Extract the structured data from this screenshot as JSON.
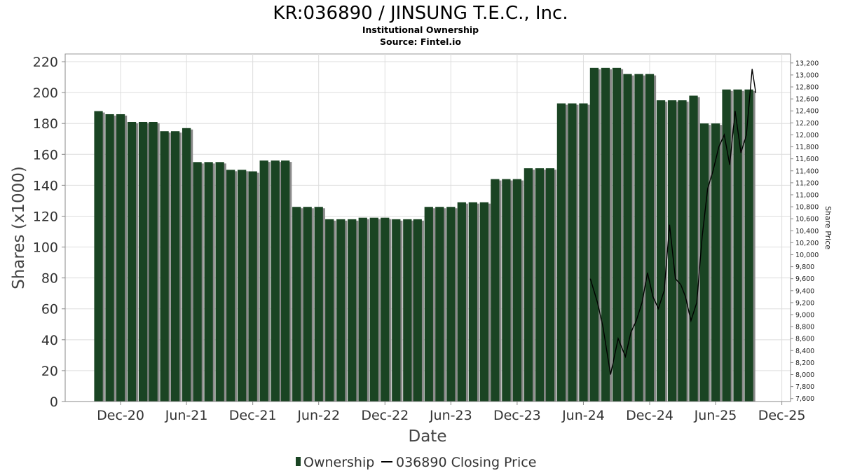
{
  "chart_data": {
    "type": "bar",
    "title": "KR:036890 / JINSUNG T.E.C., Inc.",
    "subtitle_lines": [
      "Institutional Ownership",
      "Source: Fintel.io"
    ],
    "xlabel": "Date",
    "ylabel": "Shares (x1000)",
    "y2label": "Share Price",
    "ylim": [
      0,
      225
    ],
    "y2lim": [
      7550,
      13350
    ],
    "yticks": [
      0,
      20,
      40,
      60,
      80,
      100,
      120,
      140,
      160,
      180,
      200,
      220
    ],
    "y2ticks": [
      "7,600",
      "7,800",
      "8,000",
      "8,200",
      "8,400",
      "8,600",
      "8,800",
      "9,000",
      "9,200",
      "9,400",
      "9,600",
      "9,800",
      "10,000",
      "10,200",
      "10,400",
      "10,600",
      "10,800",
      "11,000",
      "11,200",
      "11,400",
      "11,600",
      "11,800",
      "12,000",
      "12,200",
      "12,400",
      "12,600",
      "12,800",
      "13,000",
      "13,200"
    ],
    "x_range": [
      "2020-07-01",
      "2025-12-25"
    ],
    "xticks": [
      {
        "label": "Dec-20",
        "date": "2020-12-01"
      },
      {
        "label": "Jun-21",
        "date": "2021-06-01"
      },
      {
        "label": "Dec-21",
        "date": "2021-12-01"
      },
      {
        "label": "Jun-22",
        "date": "2022-06-01"
      },
      {
        "label": "Dec-22",
        "date": "2022-12-01"
      },
      {
        "label": "Jun-23",
        "date": "2023-06-01"
      },
      {
        "label": "Dec-23",
        "date": "2023-12-01"
      },
      {
        "label": "Jun-24",
        "date": "2024-06-01"
      },
      {
        "label": "Dec-24",
        "date": "2024-12-01"
      },
      {
        "label": "Jun-25",
        "date": "2025-06-01"
      },
      {
        "label": "Dec-25",
        "date": "2025-12-01"
      }
    ],
    "grid": true,
    "legend_position": "bottom",
    "series": [
      {
        "name": "Ownership",
        "kind": "bar",
        "color": "#1a4423",
        "x": [
          "2020-10-01",
          "2020-11-01",
          "2020-12-01",
          "2021-01-01",
          "2021-02-01",
          "2021-03-01",
          "2021-04-01",
          "2021-05-01",
          "2021-06-01",
          "2021-07-01",
          "2021-08-01",
          "2021-09-01",
          "2021-10-01",
          "2021-11-01",
          "2021-12-01",
          "2022-01-01",
          "2022-02-01",
          "2022-03-01",
          "2022-04-01",
          "2022-05-01",
          "2022-06-01",
          "2022-07-01",
          "2022-08-01",
          "2022-09-01",
          "2022-10-01",
          "2022-11-01",
          "2022-12-01",
          "2023-01-01",
          "2023-02-01",
          "2023-03-01",
          "2023-04-01",
          "2023-05-01",
          "2023-06-01",
          "2023-07-01",
          "2023-08-01",
          "2023-09-01",
          "2023-10-01",
          "2023-11-01",
          "2023-12-01",
          "2024-01-01",
          "2024-02-01",
          "2024-03-01",
          "2024-04-01",
          "2024-05-01",
          "2024-06-01",
          "2024-07-01",
          "2024-08-01",
          "2024-09-01",
          "2024-10-01",
          "2024-11-01",
          "2024-12-01",
          "2025-01-01",
          "2025-02-01",
          "2025-03-01",
          "2025-04-01",
          "2025-05-01",
          "2025-06-01",
          "2025-07-01",
          "2025-08-01",
          "2025-09-01"
        ],
        "values": [
          188,
          186,
          186,
          181,
          181,
          181,
          175,
          175,
          177,
          155,
          155,
          155,
          150,
          150,
          149,
          156,
          156,
          156,
          126,
          126,
          126,
          118,
          118,
          118,
          119,
          119,
          119,
          118,
          118,
          118,
          126,
          126,
          126,
          129,
          129,
          129,
          144,
          144,
          144,
          151,
          151,
          151,
          193,
          193,
          193,
          216,
          216,
          216,
          212,
          212,
          212,
          195,
          195,
          195,
          198,
          180,
          180,
          202,
          202,
          202
        ]
      },
      {
        "name": "036890 Closing Price",
        "kind": "line",
        "color": "#000000",
        "x": [
          "2024-06-20",
          "2024-07-10",
          "2024-07-25",
          "2024-08-15",
          "2024-09-05",
          "2024-09-25",
          "2024-10-10",
          "2024-10-25",
          "2024-11-10",
          "2024-11-25",
          "2024-12-10",
          "2024-12-25",
          "2025-01-10",
          "2025-01-25",
          "2025-02-10",
          "2025-02-25",
          "2025-03-10",
          "2025-03-25",
          "2025-04-10",
          "2025-04-25",
          "2025-05-10",
          "2025-05-25",
          "2025-06-10",
          "2025-06-25",
          "2025-07-10",
          "2025-07-25",
          "2025-08-10",
          "2025-08-25",
          "2025-09-10",
          "2025-09-20"
        ],
        "values": [
          9600,
          9200,
          8800,
          8000,
          8600,
          8300,
          8700,
          8900,
          9200,
          9700,
          9300,
          9100,
          9400,
          10500,
          9600,
          9500,
          9300,
          8900,
          9200,
          10300,
          11100,
          11400,
          11800,
          12000,
          11500,
          12400,
          11700,
          12000,
          13100,
          12700
        ]
      }
    ],
    "legend": [
      "Ownership",
      "036890 Closing Price"
    ]
  }
}
